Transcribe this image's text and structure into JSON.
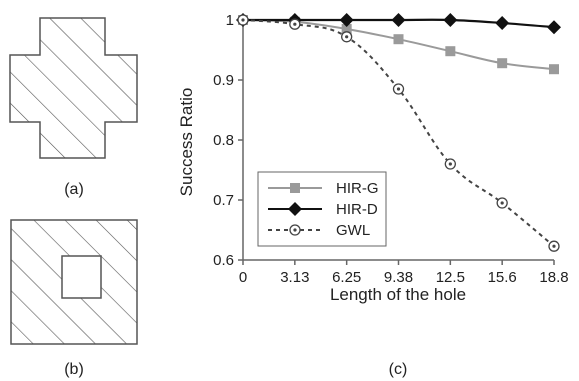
{
  "panels": {
    "a": {
      "caption": "(a)",
      "shape": "cross"
    },
    "b": {
      "caption": "(b)",
      "shape": "square-with-hole"
    },
    "c": {
      "caption": "(c)"
    }
  },
  "colors": {
    "HIR-G": "#9a9a9a",
    "HIR-D": "#111111",
    "GWL": "#444444",
    "hatch": "#555555",
    "axis": "#666666"
  },
  "chart_data": {
    "type": "line",
    "xlabel": "Length of the hole",
    "ylabel": "Success Ratio",
    "categories": [
      "0",
      "3.13",
      "6.25",
      "9.38",
      "12.5",
      "15.6",
      "18.8"
    ],
    "ylim": [
      0.6,
      1.0
    ],
    "yticks": [
      "0.6",
      "0.7",
      "0.8",
      "0.9",
      "1"
    ],
    "grid": false,
    "legend_position": "bottom-left",
    "series": [
      {
        "name": "HIR-G",
        "marker": "square",
        "line": "solid",
        "values": [
          1.0,
          0.997,
          0.985,
          0.968,
          0.948,
          0.928,
          0.918
        ]
      },
      {
        "name": "HIR-D",
        "marker": "diamond",
        "line": "solid",
        "values": [
          1.0,
          1.0,
          1.0,
          1.0,
          1.0,
          0.995,
          0.988
        ]
      },
      {
        "name": "GWL",
        "marker": "circle",
        "line": "dashed",
        "values": [
          1.0,
          0.993,
          0.972,
          0.885,
          0.76,
          0.695,
          0.623
        ]
      }
    ]
  }
}
